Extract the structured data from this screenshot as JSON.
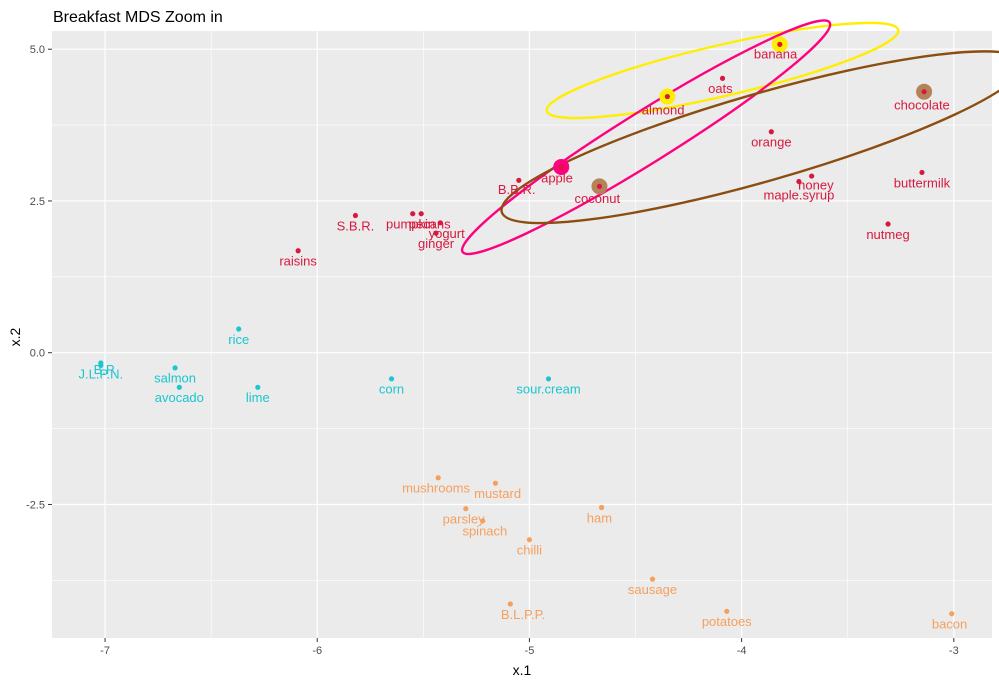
{
  "chart_data": {
    "type": "scatter",
    "title": "Breakfast MDS Zoom in",
    "xlabel": "x.1",
    "ylabel": "x.2",
    "xlim": [
      -7.25,
      -2.82
    ],
    "ylim": [
      -4.7,
      5.3
    ],
    "x_ticks": [
      -7,
      -6,
      -5,
      -4,
      -3
    ],
    "y_ticks": [
      -2.5,
      0.0,
      2.5,
      5.0
    ],
    "x_tick_labels": [
      "-7",
      "-6",
      "-5",
      "-4",
      "-3"
    ],
    "y_tick_labels": [
      "-2.5",
      "0.0",
      "2.5",
      "5.0"
    ],
    "grid": true,
    "panel_background": "#ebebeb",
    "grid_color": "#ffffff",
    "colors": {
      "cluster1": "#d7193f",
      "cluster2": "#1ac6d0",
      "cluster3": "#f5a05e"
    },
    "points": [
      {
        "label": "banana",
        "x": -3.82,
        "y": 5.08,
        "lx": -3.84,
        "ly": 4.92,
        "cluster": "cluster1"
      },
      {
        "label": "oats",
        "x": -4.09,
        "y": 4.52,
        "lx": -4.1,
        "ly": 4.35,
        "cluster": "cluster1"
      },
      {
        "label": "almond",
        "x": -4.35,
        "y": 4.22,
        "lx": -4.37,
        "ly": 4.0,
        "cluster": "cluster1"
      },
      {
        "label": "chocolate",
        "x": -3.14,
        "y": 4.3,
        "lx": -3.15,
        "ly": 4.08,
        "cluster": "cluster1"
      },
      {
        "label": "orange",
        "x": -3.86,
        "y": 3.64,
        "lx": -3.86,
        "ly": 3.47,
        "cluster": "cluster1"
      },
      {
        "label": "apple",
        "x": -4.85,
        "y": 3.06,
        "lx": -4.87,
        "ly": 2.88,
        "cluster": "cluster1"
      },
      {
        "label": "coconut",
        "x": -4.67,
        "y": 2.74,
        "lx": -4.68,
        "ly": 2.54,
        "cluster": "cluster1"
      },
      {
        "label": "B.B.R.",
        "x": -5.05,
        "y": 2.84,
        "lx": -5.06,
        "ly": 2.69,
        "cluster": "cluster1"
      },
      {
        "label": "honey",
        "x": -3.73,
        "y": 2.82,
        "lx": -3.65,
        "ly": 2.76,
        "cluster": "cluster1"
      },
      {
        "label": "maple.syrup",
        "x": -3.67,
        "y": 2.91,
        "lx": -3.73,
        "ly": 2.6,
        "cluster": "cluster1"
      },
      {
        "label": "buttermilk",
        "x": -3.15,
        "y": 2.97,
        "lx": -3.15,
        "ly": 2.8,
        "cluster": "cluster1"
      },
      {
        "label": "nutmeg",
        "x": -3.31,
        "y": 2.12,
        "lx": -3.31,
        "ly": 1.95,
        "cluster": "cluster1"
      },
      {
        "label": "S.B.R.",
        "x": -5.82,
        "y": 2.26,
        "lx": -5.82,
        "ly": 2.09,
        "cluster": "cluster1"
      },
      {
        "label": "pumpkin",
        "x": -5.55,
        "y": 2.29,
        "lx": -5.56,
        "ly": 2.12,
        "cluster": "cluster1"
      },
      {
        "label": "pecans",
        "x": -5.51,
        "y": 2.29,
        "lx": -5.47,
        "ly": 2.12,
        "cluster": "cluster1"
      },
      {
        "label": "yogurt",
        "x": -5.42,
        "y": 2.14,
        "lx": -5.39,
        "ly": 1.96,
        "cluster": "cluster1"
      },
      {
        "label": "ginger",
        "x": -5.44,
        "y": 1.97,
        "lx": -5.44,
        "ly": 1.8,
        "cluster": "cluster1"
      },
      {
        "label": "raisins",
        "x": -6.09,
        "y": 1.68,
        "lx": -6.09,
        "ly": 1.51,
        "cluster": "cluster1"
      },
      {
        "label": "rice",
        "x": -6.37,
        "y": 0.39,
        "lx": -6.37,
        "ly": 0.22,
        "cluster": "cluster2"
      },
      {
        "label": "J.L.P.N.",
        "x": -7.02,
        "y": -0.17,
        "lx": -7.02,
        "ly": -0.35,
        "cluster": "cluster2"
      },
      {
        "label": "B.P.",
        "x": -7.02,
        "y": -0.21,
        "lx": -7.0,
        "ly": -0.28,
        "cluster": "cluster2"
      },
      {
        "label": "salmon",
        "x": -6.67,
        "y": -0.25,
        "lx": -6.67,
        "ly": -0.42,
        "cluster": "cluster2"
      },
      {
        "label": "avocado",
        "x": -6.65,
        "y": -0.57,
        "lx": -6.65,
        "ly": -0.74,
        "cluster": "cluster2"
      },
      {
        "label": "lime",
        "x": -6.28,
        "y": -0.57,
        "lx": -6.28,
        "ly": -0.74,
        "cluster": "cluster2"
      },
      {
        "label": "corn",
        "x": -5.65,
        "y": -0.43,
        "lx": -5.65,
        "ly": -0.6,
        "cluster": "cluster2"
      },
      {
        "label": "sour.cream",
        "x": -4.91,
        "y": -0.43,
        "lx": -4.91,
        "ly": -0.6,
        "cluster": "cluster2"
      },
      {
        "label": "mushrooms",
        "x": -5.43,
        "y": -2.06,
        "lx": -5.44,
        "ly": -2.23,
        "cluster": "cluster3"
      },
      {
        "label": "mustard",
        "x": -5.16,
        "y": -2.15,
        "lx": -5.15,
        "ly": -2.32,
        "cluster": "cluster3"
      },
      {
        "label": "parsley",
        "x": -5.3,
        "y": -2.57,
        "lx": -5.31,
        "ly": -2.74,
        "cluster": "cluster3"
      },
      {
        "label": "spinach",
        "x": -5.22,
        "y": -2.77,
        "lx": -5.21,
        "ly": -2.94,
        "cluster": "cluster3"
      },
      {
        "label": "ham",
        "x": -4.66,
        "y": -2.55,
        "lx": -4.67,
        "ly": -2.72,
        "cluster": "cluster3"
      },
      {
        "label": "chilli",
        "x": -5.0,
        "y": -3.08,
        "lx": -5.0,
        "ly": -3.25,
        "cluster": "cluster3"
      },
      {
        "label": "sausage",
        "x": -4.42,
        "y": -3.73,
        "lx": -4.42,
        "ly": -3.9,
        "cluster": "cluster3"
      },
      {
        "label": "B.L.P.P.",
        "x": -5.09,
        "y": -4.14,
        "lx": -5.03,
        "ly": -4.31,
        "cluster": "cluster3"
      },
      {
        "label": "potatoes",
        "x": -4.07,
        "y": -4.26,
        "lx": -4.07,
        "ly": -4.43,
        "cluster": "cluster3"
      },
      {
        "label": "bacon",
        "x": -3.01,
        "y": -4.3,
        "lx": -3.02,
        "ly": -4.47,
        "cluster": "cluster3"
      }
    ],
    "highlights": [
      {
        "x": -3.82,
        "y": 5.08,
        "color": "#ffee00"
      },
      {
        "x": -4.35,
        "y": 4.22,
        "color": "#ffee00"
      },
      {
        "x": -4.85,
        "y": 3.06,
        "color": "#ff007f"
      },
      {
        "x": -4.67,
        "y": 2.74,
        "color": "#b5835a"
      },
      {
        "x": -3.14,
        "y": 4.3,
        "color": "#b5835a"
      }
    ],
    "ellipses": [
      {
        "cx": -4.09,
        "cy": 4.65,
        "rx": 0.85,
        "ry": 0.42,
        "angle": -13,
        "color": "#ffee00"
      },
      {
        "cx": -4.45,
        "cy": 3.55,
        "rx": 1.02,
        "ry": 0.42,
        "angle": -32,
        "color": "#ff007f"
      },
      {
        "cx": -3.9,
        "cy": 3.55,
        "rx": 1.28,
        "ry": 0.72,
        "angle": -16,
        "color": "#8b4e10"
      }
    ]
  }
}
